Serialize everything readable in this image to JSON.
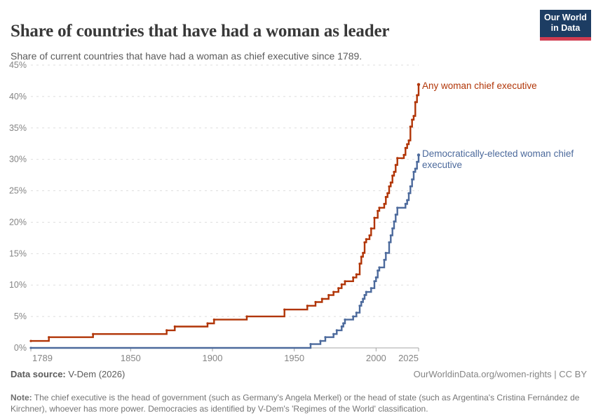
{
  "chart_data": {
    "type": "line",
    "step": true,
    "title": "Share of countries that have had a woman as leader",
    "subtitle": "Share of current countries that have had a woman as chief executive since 1789.",
    "xlabel": "",
    "ylabel": "",
    "xlim": [
      1789,
      2026
    ],
    "ylim": [
      0,
      45
    ],
    "grid": "dashed-horizontal",
    "legend_position": "end-of-line-labels",
    "x_ticks": [
      1789,
      1850,
      1900,
      1950,
      2000,
      2025
    ],
    "y_ticks": [
      0,
      5,
      10,
      15,
      20,
      25,
      30,
      35,
      40,
      45
    ],
    "y_tick_suffix": "%",
    "series": [
      {
        "name": "Any woman chief executive",
        "color": "#b13507",
        "points": [
          [
            1789,
            1.1
          ],
          [
            1800,
            1.7
          ],
          [
            1827,
            2.2
          ],
          [
            1872,
            2.8
          ],
          [
            1877,
            3.4
          ],
          [
            1897,
            3.9
          ],
          [
            1901,
            4.5
          ],
          [
            1921,
            5.0
          ],
          [
            1944,
            6.1
          ],
          [
            1958,
            6.7
          ],
          [
            1963,
            7.3
          ],
          [
            1967,
            7.8
          ],
          [
            1971,
            8.4
          ],
          [
            1974,
            8.9
          ],
          [
            1977,
            9.5
          ],
          [
            1979,
            10.1
          ],
          [
            1981,
            10.6
          ],
          [
            1986,
            11.2
          ],
          [
            1988,
            11.7
          ],
          [
            1990,
            13.4
          ],
          [
            1991,
            14.5
          ],
          [
            1992,
            15.1
          ],
          [
            1993,
            16.8
          ],
          [
            1994,
            17.3
          ],
          [
            1996,
            17.9
          ],
          [
            1997,
            19.0
          ],
          [
            1999,
            20.7
          ],
          [
            2001,
            21.8
          ],
          [
            2002,
            22.3
          ],
          [
            2005,
            22.9
          ],
          [
            2006,
            24.0
          ],
          [
            2007,
            24.6
          ],
          [
            2008,
            25.7
          ],
          [
            2009,
            26.3
          ],
          [
            2010,
            27.4
          ],
          [
            2011,
            28.0
          ],
          [
            2012,
            29.1
          ],
          [
            2013,
            30.2
          ],
          [
            2017,
            30.7
          ],
          [
            2018,
            31.8
          ],
          [
            2019,
            32.4
          ],
          [
            2020,
            33.0
          ],
          [
            2021,
            35.2
          ],
          [
            2022,
            36.3
          ],
          [
            2023,
            36.9
          ],
          [
            2024,
            39.1
          ],
          [
            2025,
            40.2
          ],
          [
            2026,
            41.9
          ]
        ]
      },
      {
        "name": "Democratically-elected woman chief executive",
        "color": "#4c6a9c",
        "points": [
          [
            1789,
            0.0
          ],
          [
            1960,
            0.6
          ],
          [
            1966,
            1.1
          ],
          [
            1969,
            1.7
          ],
          [
            1974,
            2.2
          ],
          [
            1976,
            2.8
          ],
          [
            1979,
            3.4
          ],
          [
            1980,
            3.9
          ],
          [
            1981,
            4.5
          ],
          [
            1986,
            5.0
          ],
          [
            1988,
            5.6
          ],
          [
            1990,
            6.7
          ],
          [
            1991,
            7.3
          ],
          [
            1992,
            7.8
          ],
          [
            1993,
            8.4
          ],
          [
            1994,
            8.9
          ],
          [
            1997,
            9.5
          ],
          [
            1999,
            10.6
          ],
          [
            2000,
            11.2
          ],
          [
            2001,
            12.3
          ],
          [
            2002,
            12.8
          ],
          [
            2005,
            14.0
          ],
          [
            2006,
            15.1
          ],
          [
            2008,
            16.8
          ],
          [
            2009,
            17.9
          ],
          [
            2010,
            19.0
          ],
          [
            2011,
            20.1
          ],
          [
            2012,
            21.2
          ],
          [
            2013,
            22.3
          ],
          [
            2018,
            22.9
          ],
          [
            2019,
            23.5
          ],
          [
            2020,
            24.6
          ],
          [
            2021,
            25.7
          ],
          [
            2022,
            26.8
          ],
          [
            2023,
            28.0
          ],
          [
            2024,
            28.5
          ],
          [
            2025,
            29.6
          ],
          [
            2026,
            30.7
          ]
        ]
      }
    ],
    "colors": {
      "grid": "#dedede",
      "axis": "#a5a5a5",
      "tick_label": "#858585"
    }
  },
  "header": {
    "logo": {
      "line1": "Our World",
      "line2": "in Data",
      "bg": "#1d3d63",
      "accent": "#d13c50"
    }
  },
  "footer": {
    "datasource_label": "Data source:",
    "datasource_value": "V-Dem (2026)",
    "attribution": "OurWorldinData.org/women-rights | CC BY",
    "note_label": "Note:",
    "note_text": "The chief executive is the head of government (such as Germany's Angela Merkel) or the head of state (such as Argentina's Cristina Fernández de Kirchner), whoever has more power. Democracies as identified by V-Dem's 'Regimes of the World' classification."
  }
}
